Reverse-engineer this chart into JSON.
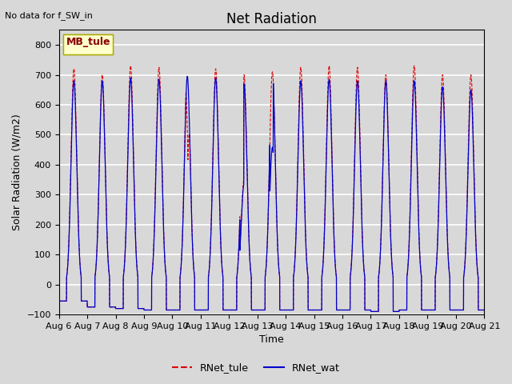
{
  "title": "Net Radiation",
  "note": "No data for f_SW_in",
  "ylabel": "Solar Radiation (W/m2)",
  "xlabel": "Time",
  "ylim": [
    -100,
    850
  ],
  "yticks": [
    -100,
    0,
    100,
    200,
    300,
    400,
    500,
    600,
    700,
    800
  ],
  "xtick_labels": [
    "Aug 6",
    "Aug 7",
    "Aug 8",
    "Aug 9",
    "Aug 10",
    "Aug 11",
    "Aug 12",
    "Aug 13",
    "Aug 14",
    "Aug 15",
    "Aug 16",
    "Aug 17",
    "Aug 18",
    "Aug 19",
    "Aug 20",
    "Aug 21"
  ],
  "legend_entries": [
    {
      "label": "RNet_tule",
      "color": "#dd0000",
      "linestyle": "--"
    },
    {
      "label": "RNet_wat",
      "color": "#0000cc",
      "linestyle": "-"
    }
  ],
  "legend_box_label": "MB_tule",
  "num_days": 15,
  "bg_color": "#d8d8d8",
  "plot_bg_color": "#d8d8d8",
  "grid_color": "#ffffff",
  "title_fontsize": 12,
  "label_fontsize": 9,
  "tick_fontsize": 8
}
